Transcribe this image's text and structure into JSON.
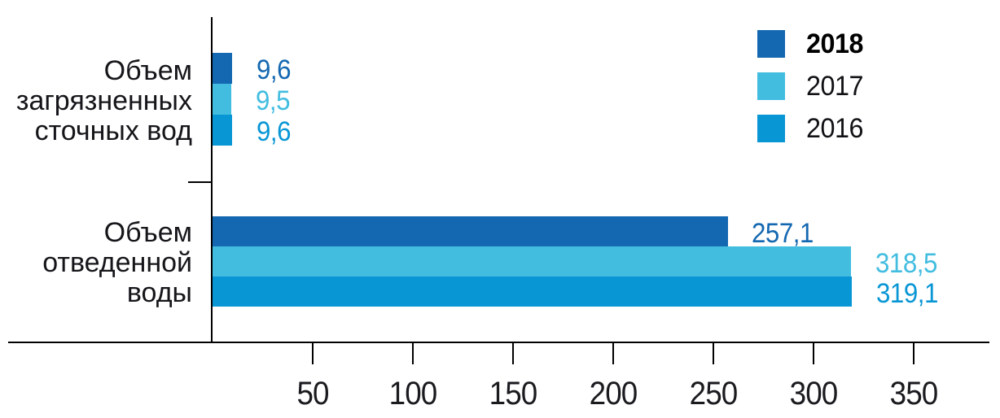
{
  "chart_data": {
    "type": "bar",
    "orientation": "horizontal-grouped",
    "title": "",
    "xlabel": "",
    "ylabel": "",
    "grid": false,
    "legend_position": "top-right",
    "x_range": [
      0,
      388
    ],
    "x_ticks": [
      50,
      100,
      150,
      200,
      250,
      300,
      350
    ],
    "categories": [
      {
        "label_lines": [
          "Объем",
          "загрязненных",
          "сточных вод"
        ]
      },
      {
        "label_lines": [
          "Объем",
          "отведенной",
          "воды"
        ]
      }
    ],
    "series": [
      {
        "name": "2018",
        "color": "#1468B1",
        "values": [
          9.6,
          257.1
        ],
        "value_labels": [
          "9,6",
          "257,1"
        ],
        "legend_bold": true
      },
      {
        "name": "2017",
        "color": "#42BDE0",
        "values": [
          9.5,
          318.5
        ],
        "value_labels": [
          "9,5",
          "318,5"
        ],
        "legend_bold": false
      },
      {
        "name": "2016",
        "color": "#0896D5",
        "values": [
          9.6,
          319.1
        ],
        "value_labels": [
          "9,6",
          "319,1"
        ],
        "legend_bold": false
      }
    ],
    "axis_color": "#000000",
    "tick_label_color": "#1a1a1f",
    "category_label_color": "#15151a"
  }
}
